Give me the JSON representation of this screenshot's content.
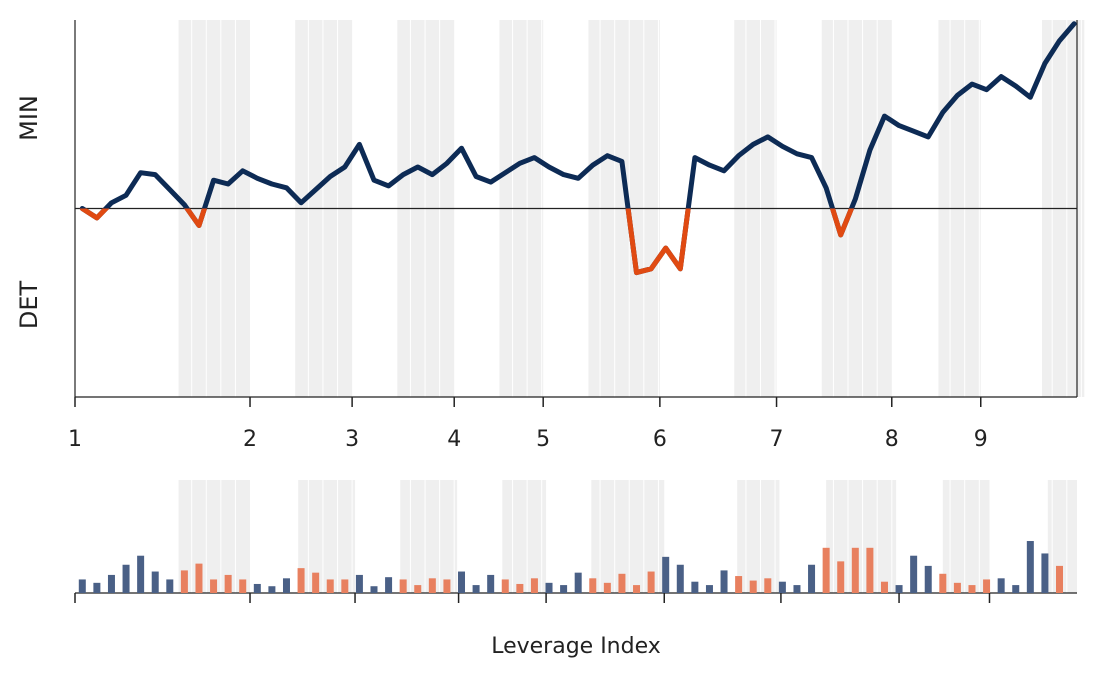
{
  "chart_data": [
    {
      "type": "line",
      "annotations": [
        "MIN",
        "DET"
      ],
      "x": [
        0,
        1,
        2,
        3,
        4,
        5,
        6,
        7,
        8,
        9,
        10,
        11,
        12,
        13,
        14,
        15,
        16,
        17,
        18,
        19,
        20,
        21,
        22,
        23,
        24,
        25,
        26,
        27,
        28,
        29,
        30,
        31,
        32,
        33,
        34,
        35,
        36,
        37,
        38,
        39,
        40,
        41,
        42,
        43,
        44,
        45,
        46,
        47,
        48,
        49,
        50,
        51,
        52,
        53,
        54,
        55,
        56,
        57,
        58,
        59,
        60,
        61,
        62,
        63,
        64,
        65,
        66,
        67,
        68
      ],
      "values": [
        0,
        -0.05,
        0.03,
        0.07,
        0.19,
        0.18,
        0.1,
        0.02,
        -0.09,
        0.15,
        0.13,
        0.2,
        0.16,
        0.13,
        0.11,
        0.03,
        0.1,
        0.17,
        0.22,
        0.34,
        0.15,
        0.12,
        0.18,
        0.22,
        0.18,
        0.24,
        0.32,
        0.17,
        0.14,
        0.19,
        0.24,
        0.27,
        0.22,
        0.18,
        0.16,
        0.23,
        0.28,
        0.25,
        -0.34,
        -0.32,
        -0.21,
        -0.32,
        0.27,
        0.23,
        0.2,
        0.28,
        0.34,
        0.38,
        0.33,
        0.29,
        0.27,
        0.11,
        -0.14,
        0.05,
        0.31,
        0.49,
        0.44,
        0.41,
        0.38,
        0.51,
        0.6,
        0.66,
        0.63,
        0.7,
        0.65,
        0.59,
        0.77,
        0.89,
        0.98
      ],
      "color": "#0d2b55",
      "negative_color": "#e04a12",
      "xlim": [
        -0.5,
        68.2
      ],
      "ylim": [
        -1,
        1
      ],
      "xticks": [
        {
          "value": -0.5,
          "label": "1"
        },
        {
          "value": 11.5,
          "label": "2"
        },
        {
          "value": 18.5,
          "label": "3"
        },
        {
          "value": 25.5,
          "label": "4"
        },
        {
          "value": 31.6,
          "label": "5"
        },
        {
          "value": 39.6,
          "label": "6"
        },
        {
          "value": 47.6,
          "label": "7"
        },
        {
          "value": 55.5,
          "label": "8"
        },
        {
          "value": 61.6,
          "label": "9"
        }
      ],
      "bands": [
        [
          6.6,
          11.5
        ],
        [
          14.6,
          18.5
        ],
        [
          21.6,
          25.5
        ],
        [
          28.6,
          31.6
        ],
        [
          34.7,
          39.6
        ],
        [
          44.7,
          47.6
        ],
        [
          50.7,
          55.5
        ],
        [
          58.7,
          61.6
        ],
        [
          65.8,
          68.7
        ]
      ]
    },
    {
      "type": "bar",
      "x_label": "Leverage Index",
      "x": [
        0,
        1,
        2,
        3,
        4,
        5,
        6,
        7,
        8,
        9,
        10,
        11,
        12,
        13,
        14,
        15,
        16,
        17,
        18,
        19,
        20,
        21,
        22,
        23,
        24,
        25,
        26,
        27,
        28,
        29,
        30,
        31,
        32,
        33,
        34,
        35,
        36,
        37,
        38,
        39,
        40,
        41,
        42,
        43,
        44,
        45,
        46,
        47,
        48,
        49,
        50,
        51,
        52,
        53,
        54,
        55,
        56,
        57,
        58,
        59,
        60,
        61,
        62,
        63,
        64,
        65,
        66,
        67
      ],
      "values": [
        0.12,
        0.09,
        0.16,
        0.25,
        0.33,
        0.19,
        0.12,
        0.2,
        0.26,
        0.12,
        0.16,
        0.12,
        0.08,
        0.06,
        0.13,
        0.22,
        0.18,
        0.12,
        0.12,
        0.16,
        0.06,
        0.14,
        0.12,
        0.07,
        0.13,
        0.12,
        0.19,
        0.07,
        0.16,
        0.12,
        0.08,
        0.13,
        0.09,
        0.07,
        0.18,
        0.13,
        0.09,
        0.17,
        0.07,
        0.19,
        0.32,
        0.25,
        0.1,
        0.07,
        0.2,
        0.15,
        0.11,
        0.13,
        0.1,
        0.07,
        0.25,
        0.4,
        0.28,
        0.4,
        0.4,
        0.1,
        0.07,
        0.33,
        0.24,
        0.17,
        0.09,
        0.07,
        0.12,
        0.13,
        0.07,
        0.46,
        0.35,
        0.24
      ],
      "color": "#4a6086",
      "band_color": "#e8805f",
      "xlim": [
        -0.5,
        68.2
      ],
      "ylim": [
        0,
        1
      ],
      "xticks": [
        -0.5,
        11.5,
        18.7,
        25.8,
        31.8,
        39.9,
        47.9,
        56,
        62.2
      ],
      "bands": [
        [
          6.6,
          11.5
        ],
        [
          14.8,
          18.7
        ],
        [
          21.8,
          25.7
        ],
        [
          28.8,
          31.8
        ],
        [
          34.9,
          39.9
        ],
        [
          44.9,
          47.8
        ],
        [
          51,
          55.8
        ],
        [
          59,
          62.2
        ],
        [
          66.2,
          68.2
        ]
      ]
    }
  ]
}
